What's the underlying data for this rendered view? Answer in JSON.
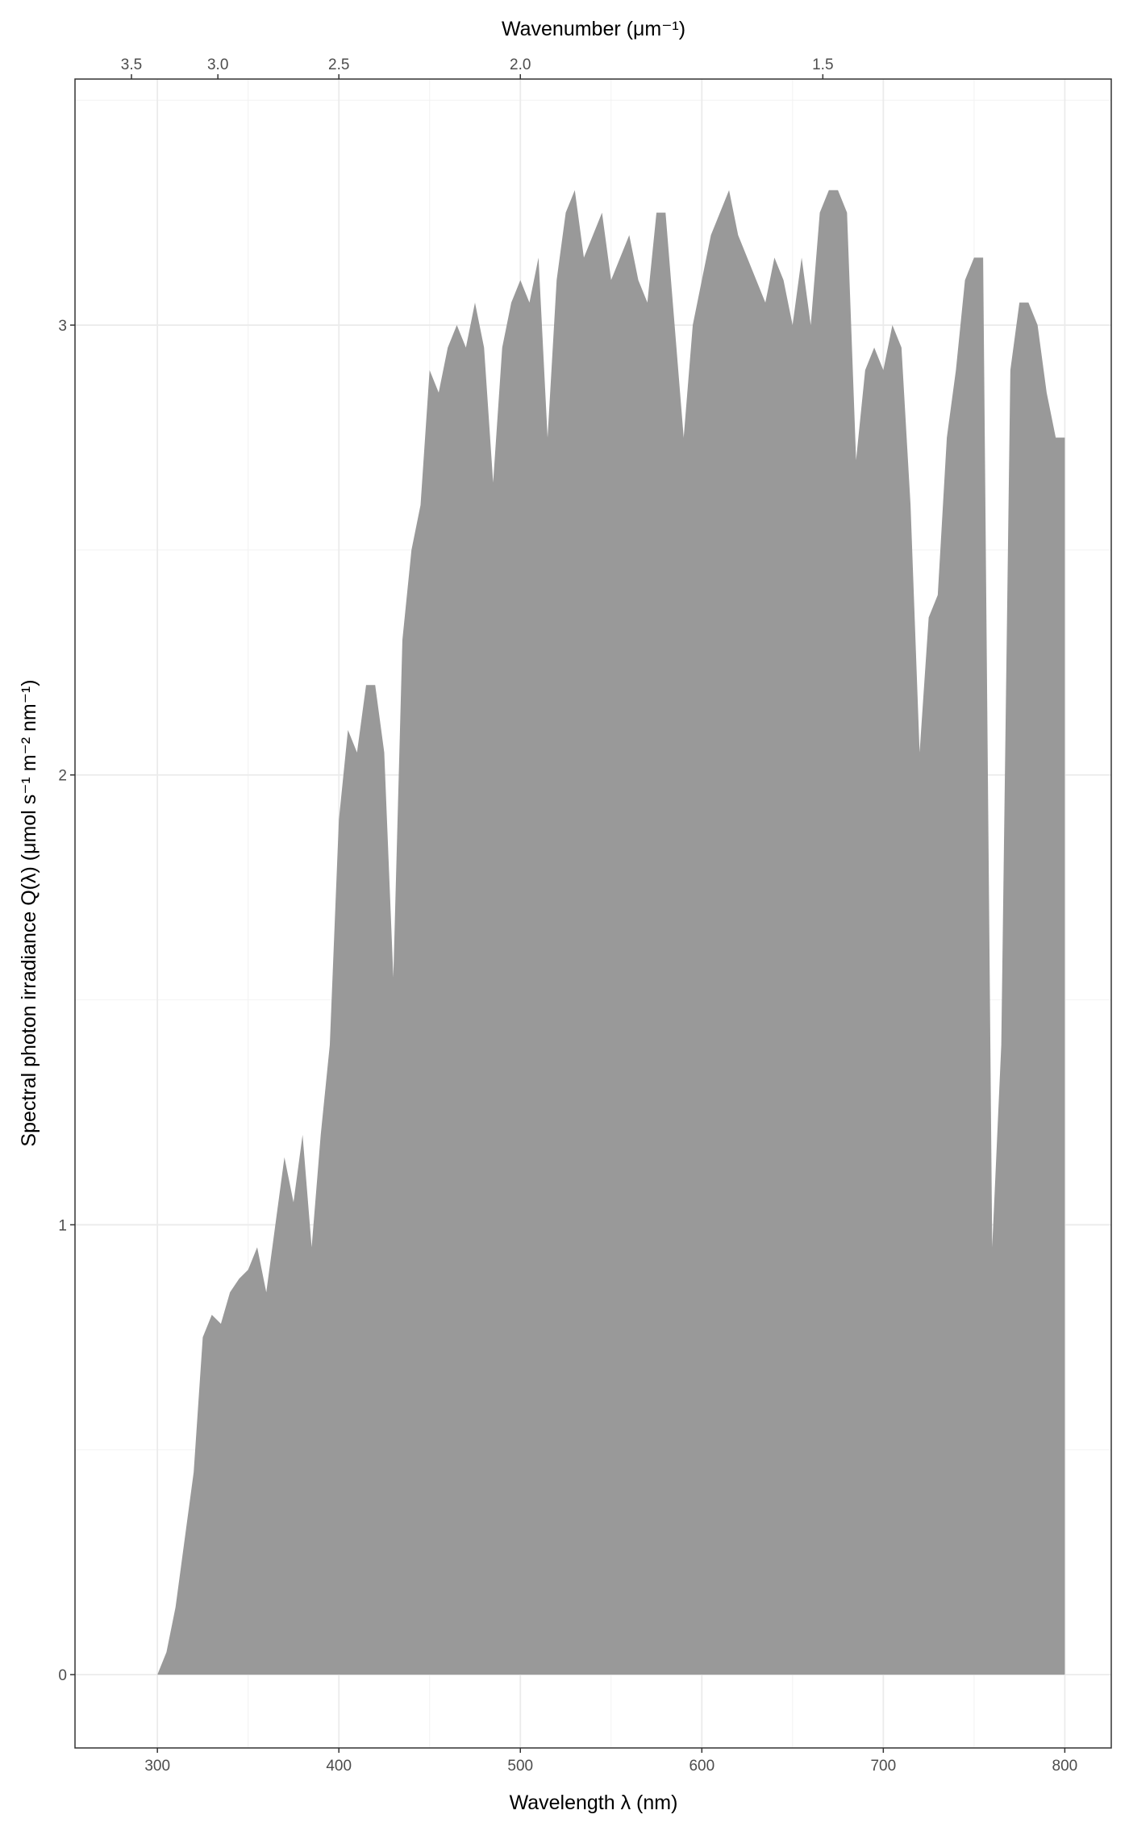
{
  "chart_data": {
    "type": "area",
    "x_title": "Wavelength λ (nm)",
    "y_title": "Spectral photon irradiance Q(λ) (μmol s⁻¹ m⁻² nm⁻¹)",
    "x2_title": "Wavenumber (μm⁻¹)",
    "x2_scale": "reciprocal",
    "color": "#999999",
    "grid": true,
    "xlim": [
      254.6,
      825.6
    ],
    "ylim": [
      -0.163,
      3.547
    ],
    "xticks": [
      300,
      400,
      500,
      600,
      700,
      800
    ],
    "yticks": [
      0,
      1,
      2,
      3
    ],
    "xminor": [
      350,
      450,
      550,
      650,
      750
    ],
    "yminor": [
      0.5,
      1.5,
      2.5,
      3.5
    ],
    "x2ticks": [
      {
        "value": 3.5,
        "label": "3.5"
      },
      {
        "value": 3.0,
        "label": "3.0"
      },
      {
        "value": 2.5,
        "label": "2.5"
      },
      {
        "value": 2.0,
        "label": "2.0"
      },
      {
        "value": 1.5,
        "label": "1.5"
      }
    ],
    "x": [
      300,
      305,
      310,
      315,
      320,
      325,
      330,
      335,
      340,
      345,
      350,
      355,
      360,
      365,
      370,
      375,
      380,
      385,
      390,
      395,
      400,
      405,
      410,
      415,
      420,
      425,
      430,
      435,
      440,
      445,
      450,
      455,
      460,
      465,
      470,
      475,
      480,
      485,
      490,
      495,
      500,
      505,
      510,
      515,
      520,
      525,
      530,
      535,
      540,
      545,
      550,
      555,
      560,
      565,
      570,
      575,
      580,
      585,
      590,
      595,
      600,
      605,
      610,
      615,
      620,
      625,
      630,
      635,
      640,
      645,
      650,
      655,
      660,
      665,
      670,
      675,
      680,
      685,
      690,
      695,
      700,
      705,
      710,
      715,
      720,
      725,
      730,
      735,
      740,
      745,
      750,
      755,
      760,
      765,
      770,
      775,
      780,
      785,
      790,
      795,
      800
    ],
    "values": [
      0,
      0.05,
      0.15,
      0.3,
      0.45,
      0.75,
      0.8,
      0.78,
      0.85,
      0.88,
      0.9,
      0.95,
      0.85,
      1.0,
      1.15,
      1.05,
      1.2,
      0.95,
      1.2,
      1.4,
      1.9,
      2.1,
      2.05,
      2.2,
      2.2,
      2.05,
      1.55,
      2.3,
      2.5,
      2.6,
      2.9,
      2.85,
      2.95,
      3.0,
      2.95,
      3.05,
      2.95,
      2.65,
      2.95,
      3.05,
      3.1,
      3.05,
      3.15,
      2.75,
      3.1,
      3.25,
      3.3,
      3.15,
      3.2,
      3.25,
      3.1,
      3.15,
      3.2,
      3.1,
      3.05,
      3.25,
      3.25,
      3.0,
      2.75,
      3.0,
      3.1,
      3.2,
      3.25,
      3.3,
      3.2,
      3.15,
      3.1,
      3.05,
      3.15,
      3.1,
      3.0,
      3.15,
      3.0,
      3.25,
      3.3,
      3.3,
      3.25,
      2.7,
      2.9,
      2.95,
      2.9,
      3.0,
      2.95,
      2.6,
      2.05,
      2.35,
      2.4,
      2.75,
      2.9,
      3.1,
      3.15,
      3.15,
      0.95,
      1.4,
      2.9,
      3.05,
      3.05,
      3.0,
      2.85,
      2.75,
      2.75
    ]
  }
}
